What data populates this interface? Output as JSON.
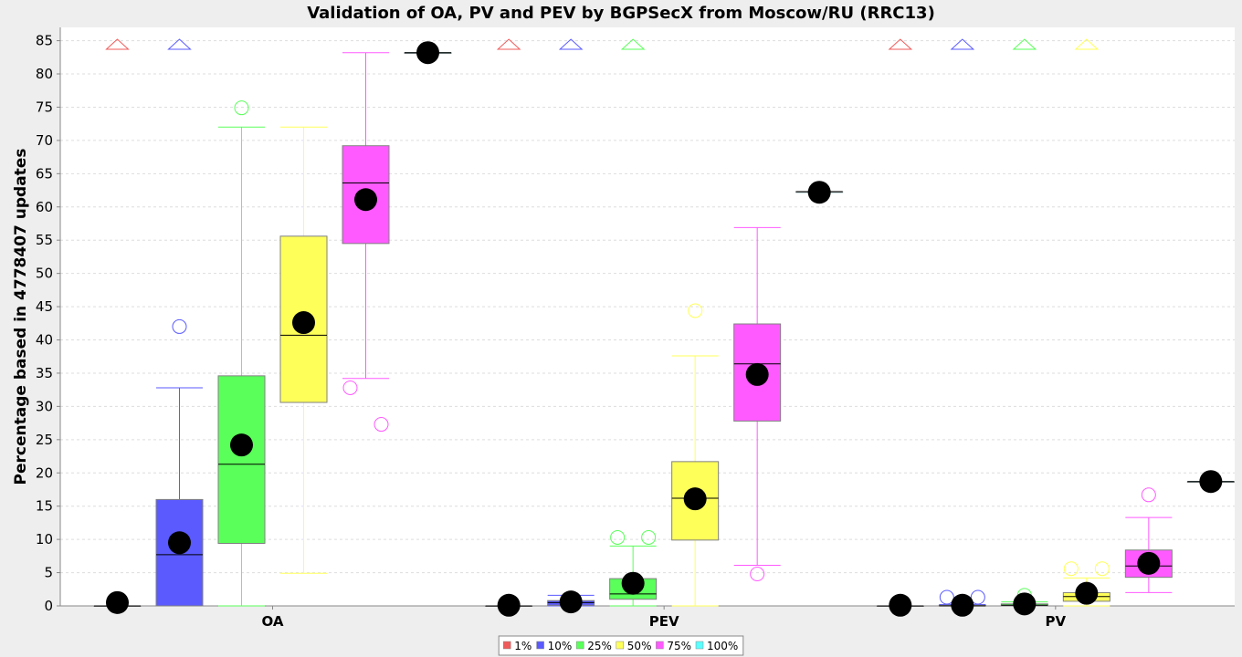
{
  "chart_data": {
    "type": "boxplot",
    "title": "Validation of OA, PV and PEV by BGPSecX from Moscow/RU (RRC13)",
    "ylabel": "Percentage based in 4778407 updates",
    "xlabel": "",
    "ylim": [
      0,
      87
    ],
    "yticks": [
      0,
      5,
      10,
      15,
      20,
      25,
      30,
      35,
      40,
      45,
      50,
      55,
      60,
      65,
      70,
      75,
      80,
      85
    ],
    "grid": true,
    "legend_position": "bottom-center",
    "categories": [
      "OA",
      "PEV",
      "PV"
    ],
    "series": [
      {
        "name": "1%",
        "color": "#f05a5a"
      },
      {
        "name": "10%",
        "color": "#5a5aff"
      },
      {
        "name": "25%",
        "color": "#5aff5a"
      },
      {
        "name": "50%",
        "color": "#ffff5a"
      },
      {
        "name": "75%",
        "color": "#ff5aff"
      },
      {
        "name": "100%",
        "color": "#5affff"
      }
    ],
    "boxes": [
      [
        {
          "q1": 0,
          "median": 0,
          "q3": 0,
          "wlo": 0,
          "whi": 0,
          "mean": 0.5,
          "outliers": [],
          "far_out": true
        },
        {
          "q1": 0,
          "median": 7.7,
          "q3": 16.0,
          "wlo": 0,
          "whi": 32.8,
          "mean": 9.5,
          "outliers": [
            42.0
          ],
          "far_out": true
        },
        {
          "q1": 9.4,
          "median": 21.3,
          "q3": 34.6,
          "wlo": 0,
          "whi": 72.0,
          "mean": 24.2,
          "outliers": [
            74.9
          ],
          "far_out": false
        },
        {
          "q1": 30.6,
          "median": 40.7,
          "q3": 55.6,
          "wlo": 4.9,
          "whi": 72.0,
          "mean": 42.6,
          "outliers": [],
          "far_out": false
        },
        {
          "q1": 54.5,
          "median": 63.6,
          "q3": 69.2,
          "wlo": 34.2,
          "whi": 83.2,
          "mean": 61.1,
          "outliers": [
            32.8,
            27.3
          ],
          "far_out": false
        },
        {
          "q1": 83.1,
          "median": 83.2,
          "q3": 83.2,
          "wlo": 83.1,
          "whi": 83.2,
          "mean": 83.2,
          "outliers": [],
          "far_out": false
        }
      ],
      [
        {
          "q1": 0,
          "median": 0,
          "q3": 0,
          "wlo": 0,
          "whi": 0,
          "mean": 0.1,
          "outliers": [],
          "far_out": true
        },
        {
          "q1": 0.1,
          "median": 0.5,
          "q3": 0.8,
          "wlo": 0,
          "whi": 1.6,
          "mean": 0.6,
          "outliers": [],
          "far_out": true
        },
        {
          "q1": 1.0,
          "median": 1.8,
          "q3": 4.1,
          "wlo": 0,
          "whi": 9.0,
          "mean": 3.4,
          "outliers": [
            10.3,
            10.3
          ],
          "far_out": true
        },
        {
          "q1": 9.9,
          "median": 16.2,
          "q3": 21.7,
          "wlo": 0,
          "whi": 37.6,
          "mean": 16.1,
          "outliers": [
            44.4
          ],
          "far_out": false
        },
        {
          "q1": 27.8,
          "median": 36.4,
          "q3": 42.4,
          "wlo": 6.1,
          "whi": 56.9,
          "mean": 34.8,
          "outliers": [
            4.8
          ],
          "far_out": false
        },
        {
          "q1": 62.2,
          "median": 62.3,
          "q3": 62.3,
          "wlo": 62.2,
          "whi": 62.3,
          "mean": 62.2,
          "outliers": [],
          "far_out": false
        }
      ],
      [
        {
          "q1": 0,
          "median": 0,
          "q3": 0,
          "wlo": 0,
          "whi": 0,
          "mean": 0.1,
          "outliers": [],
          "far_out": true
        },
        {
          "q1": 0,
          "median": 0,
          "q3": 0.1,
          "wlo": 0,
          "whi": 0.2,
          "mean": 0.1,
          "outliers": [
            1.3,
            1.3
          ],
          "far_out": true
        },
        {
          "q1": 0,
          "median": 0.1,
          "q3": 0.3,
          "wlo": 0,
          "whi": 0.6,
          "mean": 0.3,
          "outliers": [
            1.6
          ],
          "far_out": true
        },
        {
          "q1": 0.7,
          "median": 1.4,
          "q3": 2.0,
          "wlo": 0,
          "whi": 4.2,
          "mean": 1.9,
          "outliers": [
            5.6,
            5.6
          ],
          "far_out": true
        },
        {
          "q1": 4.3,
          "median": 6.0,
          "q3": 8.4,
          "wlo": 2.0,
          "whi": 13.3,
          "mean": 6.4,
          "outliers": [
            16.7
          ],
          "far_out": false
        },
        {
          "q1": 18.6,
          "median": 18.7,
          "q3": 18.7,
          "wlo": 18.6,
          "whi": 18.7,
          "mean": 18.7,
          "outliers": [],
          "far_out": false
        }
      ]
    ]
  }
}
